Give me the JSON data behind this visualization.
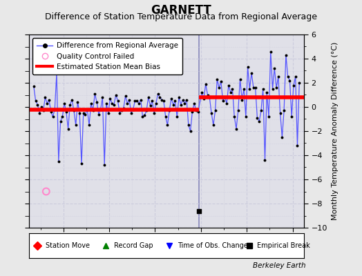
{
  "title": "GARNETT",
  "subtitle": "Difference of Station Temperature Data from Regional Average",
  "ylabel": "Monthly Temperature Anomaly Difference (°C)",
  "xlabel_bottom": "Berkeley Earth",
  "background_color": "#e8e8e8",
  "plot_bg_color": "#e0e0e8",
  "ylim": [
    -10,
    6
  ],
  "xlim_start": 1930.5,
  "xlim_end": 1942.5,
  "break_line_x": 1937.917,
  "empirical_break_x": 1937.917,
  "empirical_break_y": -8.6,
  "qc_fail_x": 1931.25,
  "qc_fail_y": -7.0,
  "bias1": -0.2,
  "bias1_start": 1930.5,
  "bias1_end": 1937.917,
  "bias2": 0.8,
  "bias2_start": 1937.917,
  "bias2_end": 1942.5,
  "time": [
    1930.708,
    1930.792,
    1930.875,
    1930.958,
    1931.042,
    1931.125,
    1931.208,
    1931.292,
    1931.375,
    1931.458,
    1931.542,
    1931.625,
    1931.708,
    1931.792,
    1931.875,
    1931.958,
    1932.042,
    1932.125,
    1932.208,
    1932.292,
    1932.375,
    1932.458,
    1932.542,
    1932.625,
    1932.708,
    1932.792,
    1932.875,
    1932.958,
    1933.042,
    1933.125,
    1933.208,
    1933.292,
    1933.375,
    1933.458,
    1933.542,
    1933.625,
    1933.708,
    1933.792,
    1933.875,
    1933.958,
    1934.042,
    1934.125,
    1934.208,
    1934.292,
    1934.375,
    1934.458,
    1934.542,
    1934.625,
    1934.708,
    1934.792,
    1934.875,
    1934.958,
    1935.042,
    1935.125,
    1935.208,
    1935.292,
    1935.375,
    1935.458,
    1935.542,
    1935.625,
    1935.708,
    1935.792,
    1935.875,
    1935.958,
    1936.042,
    1936.125,
    1936.208,
    1936.292,
    1936.375,
    1936.458,
    1936.542,
    1936.625,
    1936.708,
    1936.792,
    1936.875,
    1936.958,
    1937.042,
    1937.125,
    1937.208,
    1937.292,
    1937.375,
    1937.458,
    1937.542,
    1937.625,
    1937.708,
    1937.792,
    1937.875,
    1938.042,
    1938.125,
    1938.208,
    1938.292,
    1938.375,
    1938.458,
    1938.542,
    1938.625,
    1938.708,
    1938.792,
    1938.875,
    1938.958,
    1939.042,
    1939.125,
    1939.208,
    1939.292,
    1939.375,
    1939.458,
    1939.542,
    1939.625,
    1939.708,
    1939.792,
    1939.875,
    1939.958,
    1940.042,
    1940.125,
    1940.208,
    1940.292,
    1940.375,
    1940.458,
    1940.542,
    1940.625,
    1940.708,
    1940.792,
    1940.875,
    1940.958,
    1941.042,
    1941.125,
    1941.208,
    1941.292,
    1941.375,
    1941.458,
    1941.542,
    1941.625,
    1941.708,
    1941.792,
    1941.875,
    1941.958,
    1942.042,
    1942.125,
    1942.208,
    1942.292
  ],
  "values": [
    1.7,
    0.5,
    0.2,
    -0.5,
    0.0,
    -0.3,
    0.8,
    0.3,
    0.6,
    -0.4,
    -0.8,
    -0.2,
    2.8,
    -4.5,
    -1.2,
    -0.8,
    0.3,
    -0.4,
    -1.8,
    0.2,
    0.6,
    -0.3,
    -1.5,
    0.4,
    -0.5,
    -4.7,
    -0.5,
    -0.6,
    -0.2,
    -1.5,
    0.3,
    -0.3,
    1.1,
    0.4,
    -0.6,
    -0.2,
    0.8,
    -4.8,
    0.3,
    -0.5,
    0.7,
    0.3,
    0.2,
    1.0,
    0.5,
    -0.5,
    -0.3,
    -0.1,
    0.9,
    0.3,
    0.6,
    -0.5,
    -0.2,
    0.5,
    0.5,
    0.3,
    0.6,
    -0.8,
    -0.7,
    -0.3,
    0.8,
    0.1,
    0.5,
    -0.5,
    0.3,
    1.1,
    0.8,
    0.6,
    0.5,
    -0.8,
    -1.5,
    -0.3,
    0.7,
    0.2,
    0.5,
    -0.8,
    0.8,
    0.2,
    0.6,
    0.3,
    0.6,
    -1.5,
    -2.0,
    -0.4,
    0.3,
    -0.3,
    -0.4,
    1.2,
    0.7,
    1.9,
    1.0,
    0.8,
    -0.5,
    -1.5,
    -0.3,
    2.3,
    1.6,
    2.1,
    0.5,
    0.8,
    0.3,
    1.8,
    1.2,
    1.5,
    -0.8,
    -1.8,
    -0.3,
    2.3,
    0.6,
    1.5,
    -0.8,
    3.3,
    1.5,
    2.8,
    1.6,
    1.6,
    -0.9,
    -1.2,
    -0.3,
    1.5,
    -4.4,
    1.2,
    -0.8,
    4.6,
    1.5,
    3.2,
    1.6,
    2.5,
    -0.5,
    -2.5,
    -0.3,
    4.3,
    2.5,
    2.2,
    -0.8,
    1.8,
    2.5,
    -3.2,
    2.0
  ],
  "line_color": "#5555ff",
  "marker_color": "#000000",
  "bias_color": "#ff0000",
  "vline_color": "#8888bb",
  "grid_color": "#ccccdd",
  "title_fontsize": 12,
  "subtitle_fontsize": 9,
  "tick_fontsize": 8,
  "ylabel_fontsize": 8
}
